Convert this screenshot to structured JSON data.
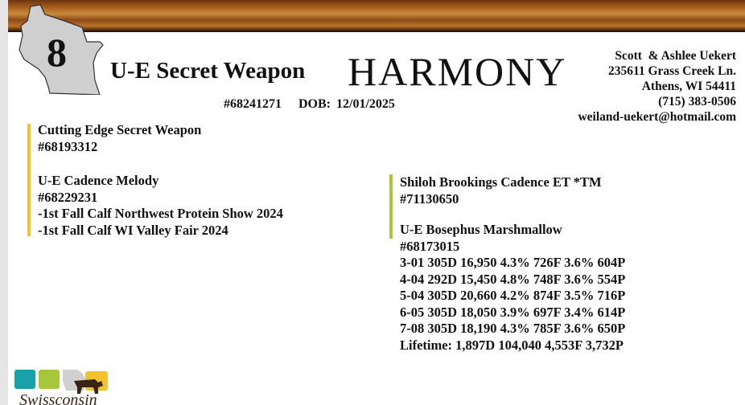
{
  "lot_number": "8",
  "animal": {
    "name": "U-E Secret Weapon",
    "prefix": "HARMONY",
    "reg": "#68241271",
    "dob": "DOB: 12/01/2025"
  },
  "contact": {
    "name": "Scott  & Ashlee Uekert",
    "address": "235611 Grass Creek Ln.",
    "city": "Athens, WI 54411",
    "phone": "(715) 383-0506",
    "email": "weiland-uekert@hotmail.com"
  },
  "sire": {
    "name": "Cutting Edge Secret Weapon",
    "reg": "#68193312"
  },
  "dam": {
    "name": "U-E Cadence Melody",
    "reg": "#68229231",
    "notes": [
      "-1st Fall Calf Northwest Protein Show 2024",
      "-1st Fall Calf WI Valley Fair 2024"
    ]
  },
  "dams_sire": {
    "name": "Shiloh Brookings Cadence ET *TM",
    "reg": "#71130650"
  },
  "granddam": {
    "name": "U-E Bosephus Marshmallow",
    "reg": "#68173015",
    "records": [
      "3-01 305D 16,950 4.3% 726F 3.6% 604P",
      "4-04 292D 15,450 4.8% 748F 3.6% 554P",
      "5-04 305D 20,660 4.2% 874F 3.5% 716P",
      "6-05 305D 18,050 3.9% 697F 3.4% 614P",
      "7-08 305D 18,190 4.3% 785F 3.6% 650P",
      "Lifetime: 1,897D 104,040 4,553F 3,732P"
    ]
  },
  "logo_text": "Swissconsin",
  "colors": {
    "sire_bar": "#f2c230",
    "dam_side_bar": "#a8c63a",
    "state_gray": "#cfcfcf"
  }
}
